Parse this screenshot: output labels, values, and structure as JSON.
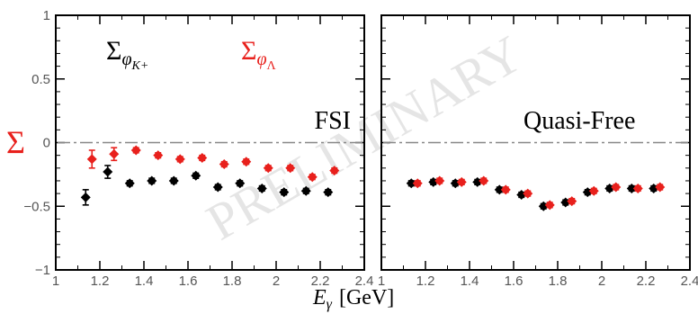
{
  "figure": {
    "xlabel_symbol": "E",
    "xlabel_sub": "γ",
    "xlabel_unit": "[GeV]",
    "ylabel": "Σ",
    "watermark": "PRELIMINARY"
  },
  "chart_data": [
    {
      "type": "scatter",
      "panel": "left",
      "label": "FSI",
      "xlim": [
        1.0,
        2.4
      ],
      "ylim": [
        -1.0,
        1.0
      ],
      "xticks": [
        "1",
        "1.2",
        "1.4",
        "1.6",
        "1.8",
        "2",
        "2.2",
        "2.4"
      ],
      "yticks": [
        "1",
        "0.5",
        "0",
        "−0.5",
        "−1"
      ],
      "reference_line": 0,
      "legend": [
        {
          "main": "Σ",
          "sub": "φ",
          "subsub": "K+",
          "color": "#000000"
        },
        {
          "main": "Σ",
          "sub": "φ",
          "subsub": "Λ",
          "color": "#e8201c"
        }
      ],
      "series": [
        {
          "color": "#000000",
          "x": [
            1.15,
            1.25,
            1.35,
            1.45,
            1.55,
            1.65,
            1.75,
            1.85,
            1.95,
            2.05,
            2.15,
            2.25
          ],
          "y": [
            -0.43,
            -0.23,
            -0.32,
            -0.3,
            -0.3,
            -0.26,
            -0.35,
            -0.32,
            -0.36,
            -0.39,
            -0.38,
            -0.39
          ],
          "err": [
            0.06,
            0.05,
            0.02,
            0.02,
            0.02,
            0.02,
            0.02,
            0.02,
            0.02,
            0.02,
            0.02,
            0.02
          ]
        },
        {
          "color": "#e8201c",
          "x": [
            1.15,
            1.25,
            1.35,
            1.45,
            1.55,
            1.65,
            1.75,
            1.85,
            1.95,
            2.05,
            2.15,
            2.25
          ],
          "y": [
            -0.13,
            -0.09,
            -0.06,
            -0.1,
            -0.13,
            -0.12,
            -0.17,
            -0.15,
            -0.2,
            -0.2,
            -0.27,
            -0.22
          ],
          "err": [
            0.07,
            0.05,
            0.02,
            0.02,
            0.02,
            0.02,
            0.02,
            0.02,
            0.02,
            0.02,
            0.02,
            0.02
          ]
        }
      ]
    },
    {
      "type": "scatter",
      "panel": "right",
      "label": "Quasi-Free",
      "xlim": [
        1.0,
        2.4
      ],
      "ylim": [
        -1.0,
        1.0
      ],
      "xticks": [
        "1",
        "1.2",
        "1.4",
        "1.6",
        "1.8",
        "2",
        "2.2",
        "2.4"
      ],
      "reference_line": 0,
      "series": [
        {
          "color": "#000000",
          "x": [
            1.15,
            1.25,
            1.35,
            1.45,
            1.55,
            1.65,
            1.75,
            1.85,
            1.95,
            2.05,
            2.15,
            2.25
          ],
          "y": [
            -0.32,
            -0.31,
            -0.32,
            -0.31,
            -0.37,
            -0.41,
            -0.5,
            -0.47,
            -0.39,
            -0.36,
            -0.36,
            -0.36
          ],
          "err": [
            0.02,
            0.02,
            0.02,
            0.02,
            0.02,
            0.02,
            0.02,
            0.02,
            0.02,
            0.02,
            0.02,
            0.02
          ]
        },
        {
          "color": "#e8201c",
          "x": [
            1.15,
            1.25,
            1.35,
            1.45,
            1.55,
            1.65,
            1.75,
            1.85,
            1.95,
            2.05,
            2.15,
            2.25
          ],
          "y": [
            -0.32,
            -0.3,
            -0.31,
            -0.3,
            -0.37,
            -0.4,
            -0.49,
            -0.46,
            -0.38,
            -0.35,
            -0.36,
            -0.35
          ],
          "err": [
            0.02,
            0.02,
            0.02,
            0.02,
            0.02,
            0.02,
            0.02,
            0.02,
            0.02,
            0.02,
            0.02,
            0.02
          ]
        }
      ]
    }
  ]
}
